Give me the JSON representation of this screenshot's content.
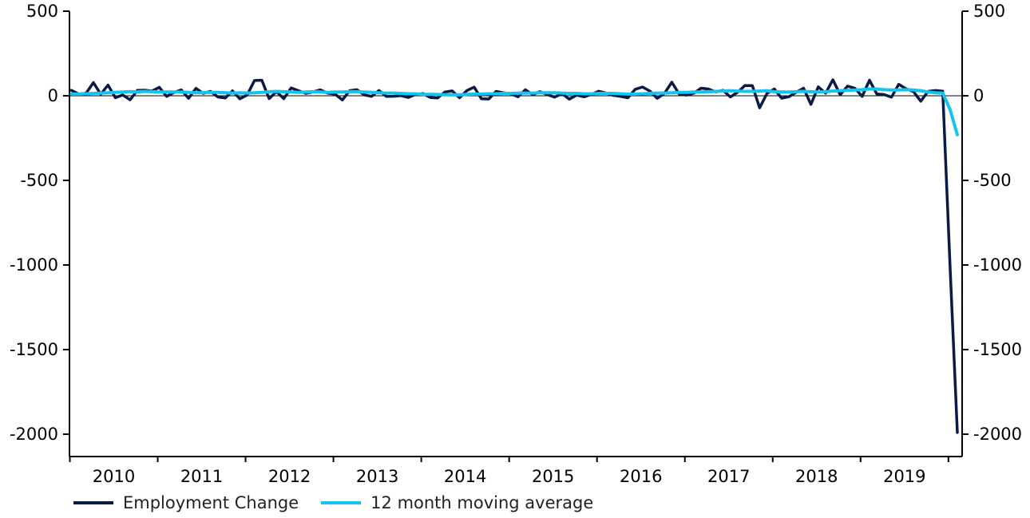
{
  "chart_data": {
    "type": "line",
    "title": "",
    "xlabel": "",
    "ylabel": "",
    "ylim": [
      -2100,
      500
    ],
    "y_ticks": [
      500,
      0,
      -500,
      -1000,
      -1500,
      -2000
    ],
    "y_tick_labels": [
      "500",
      "0",
      "-500",
      "-1000",
      "-1500",
      "-2000"
    ],
    "x_ticks": [
      "2010",
      "2011",
      "2012",
      "2013",
      "2014",
      "2015",
      "2016",
      "2017",
      "2018",
      "2019"
    ],
    "x_start_year": 2010,
    "grid": false,
    "legend_position": "bottom-left",
    "zero_line": true,
    "series": [
      {
        "name": "Employment Change",
        "color": "#0a1a46",
        "values": [
          32,
          10,
          15,
          78,
          9,
          63,
          -12,
          5,
          -24,
          32,
          33,
          28,
          50,
          -4,
          20,
          35,
          -15,
          44,
          14,
          26,
          -7,
          -13,
          29,
          -18,
          5,
          90,
          92,
          -17,
          25,
          -17,
          46,
          30,
          14,
          23,
          35,
          15,
          10,
          -25,
          30,
          36,
          5,
          -4,
          31,
          -4,
          -3,
          1,
          -10,
          8,
          13,
          -10,
          -13,
          22,
          29,
          -12,
          30,
          51,
          -18,
          -19,
          26,
          18,
          12,
          -6,
          36,
          6,
          24,
          7,
          -8,
          13,
          -20,
          4,
          -6,
          8,
          27,
          16,
          3,
          -4,
          -12,
          38,
          52,
          28,
          -15,
          14,
          80,
          10,
          4,
          15,
          45,
          40,
          23,
          32,
          -7,
          21,
          61,
          60,
          -71,
          14,
          40,
          -14,
          -5,
          21,
          45,
          -51,
          53,
          15,
          95,
          6,
          57,
          45,
          -4,
          92,
          11,
          7,
          -8,
          68,
          41,
          25,
          -32,
          26,
          31,
          27,
          -1000,
          -1990
        ]
      },
      {
        "name": "12 month moving average",
        "color": "#14c4f0",
        "values": [
          10,
          10,
          12,
          14,
          16,
          18,
          20,
          22,
          25,
          23,
          26,
          24,
          22,
          22,
          22,
          22,
          20,
          18,
          19,
          20,
          20,
          18,
          16,
          18,
          16,
          18,
          20,
          24,
          26,
          24,
          22,
          20,
          22,
          24,
          22,
          20,
          22,
          22,
          24,
          24,
          22,
          20,
          18,
          16,
          16,
          14,
          12,
          12,
          8,
          8,
          8,
          6,
          6,
          6,
          8,
          10,
          10,
          12,
          12,
          14,
          14,
          16,
          16,
          16,
          18,
          18,
          18,
          16,
          14,
          14,
          12,
          12,
          14,
          14,
          14,
          12,
          10,
          10,
          12,
          14,
          16,
          16,
          18,
          20,
          20,
          22,
          22,
          24,
          26,
          28,
          30,
          28,
          26,
          26,
          28,
          30,
          24,
          22,
          22,
          24,
          26,
          24,
          22,
          24,
          28,
          30,
          32,
          34,
          36,
          40,
          40,
          36,
          34,
          34,
          36,
          34,
          30,
          22,
          18,
          16,
          -80,
          -230
        ]
      }
    ]
  }
}
